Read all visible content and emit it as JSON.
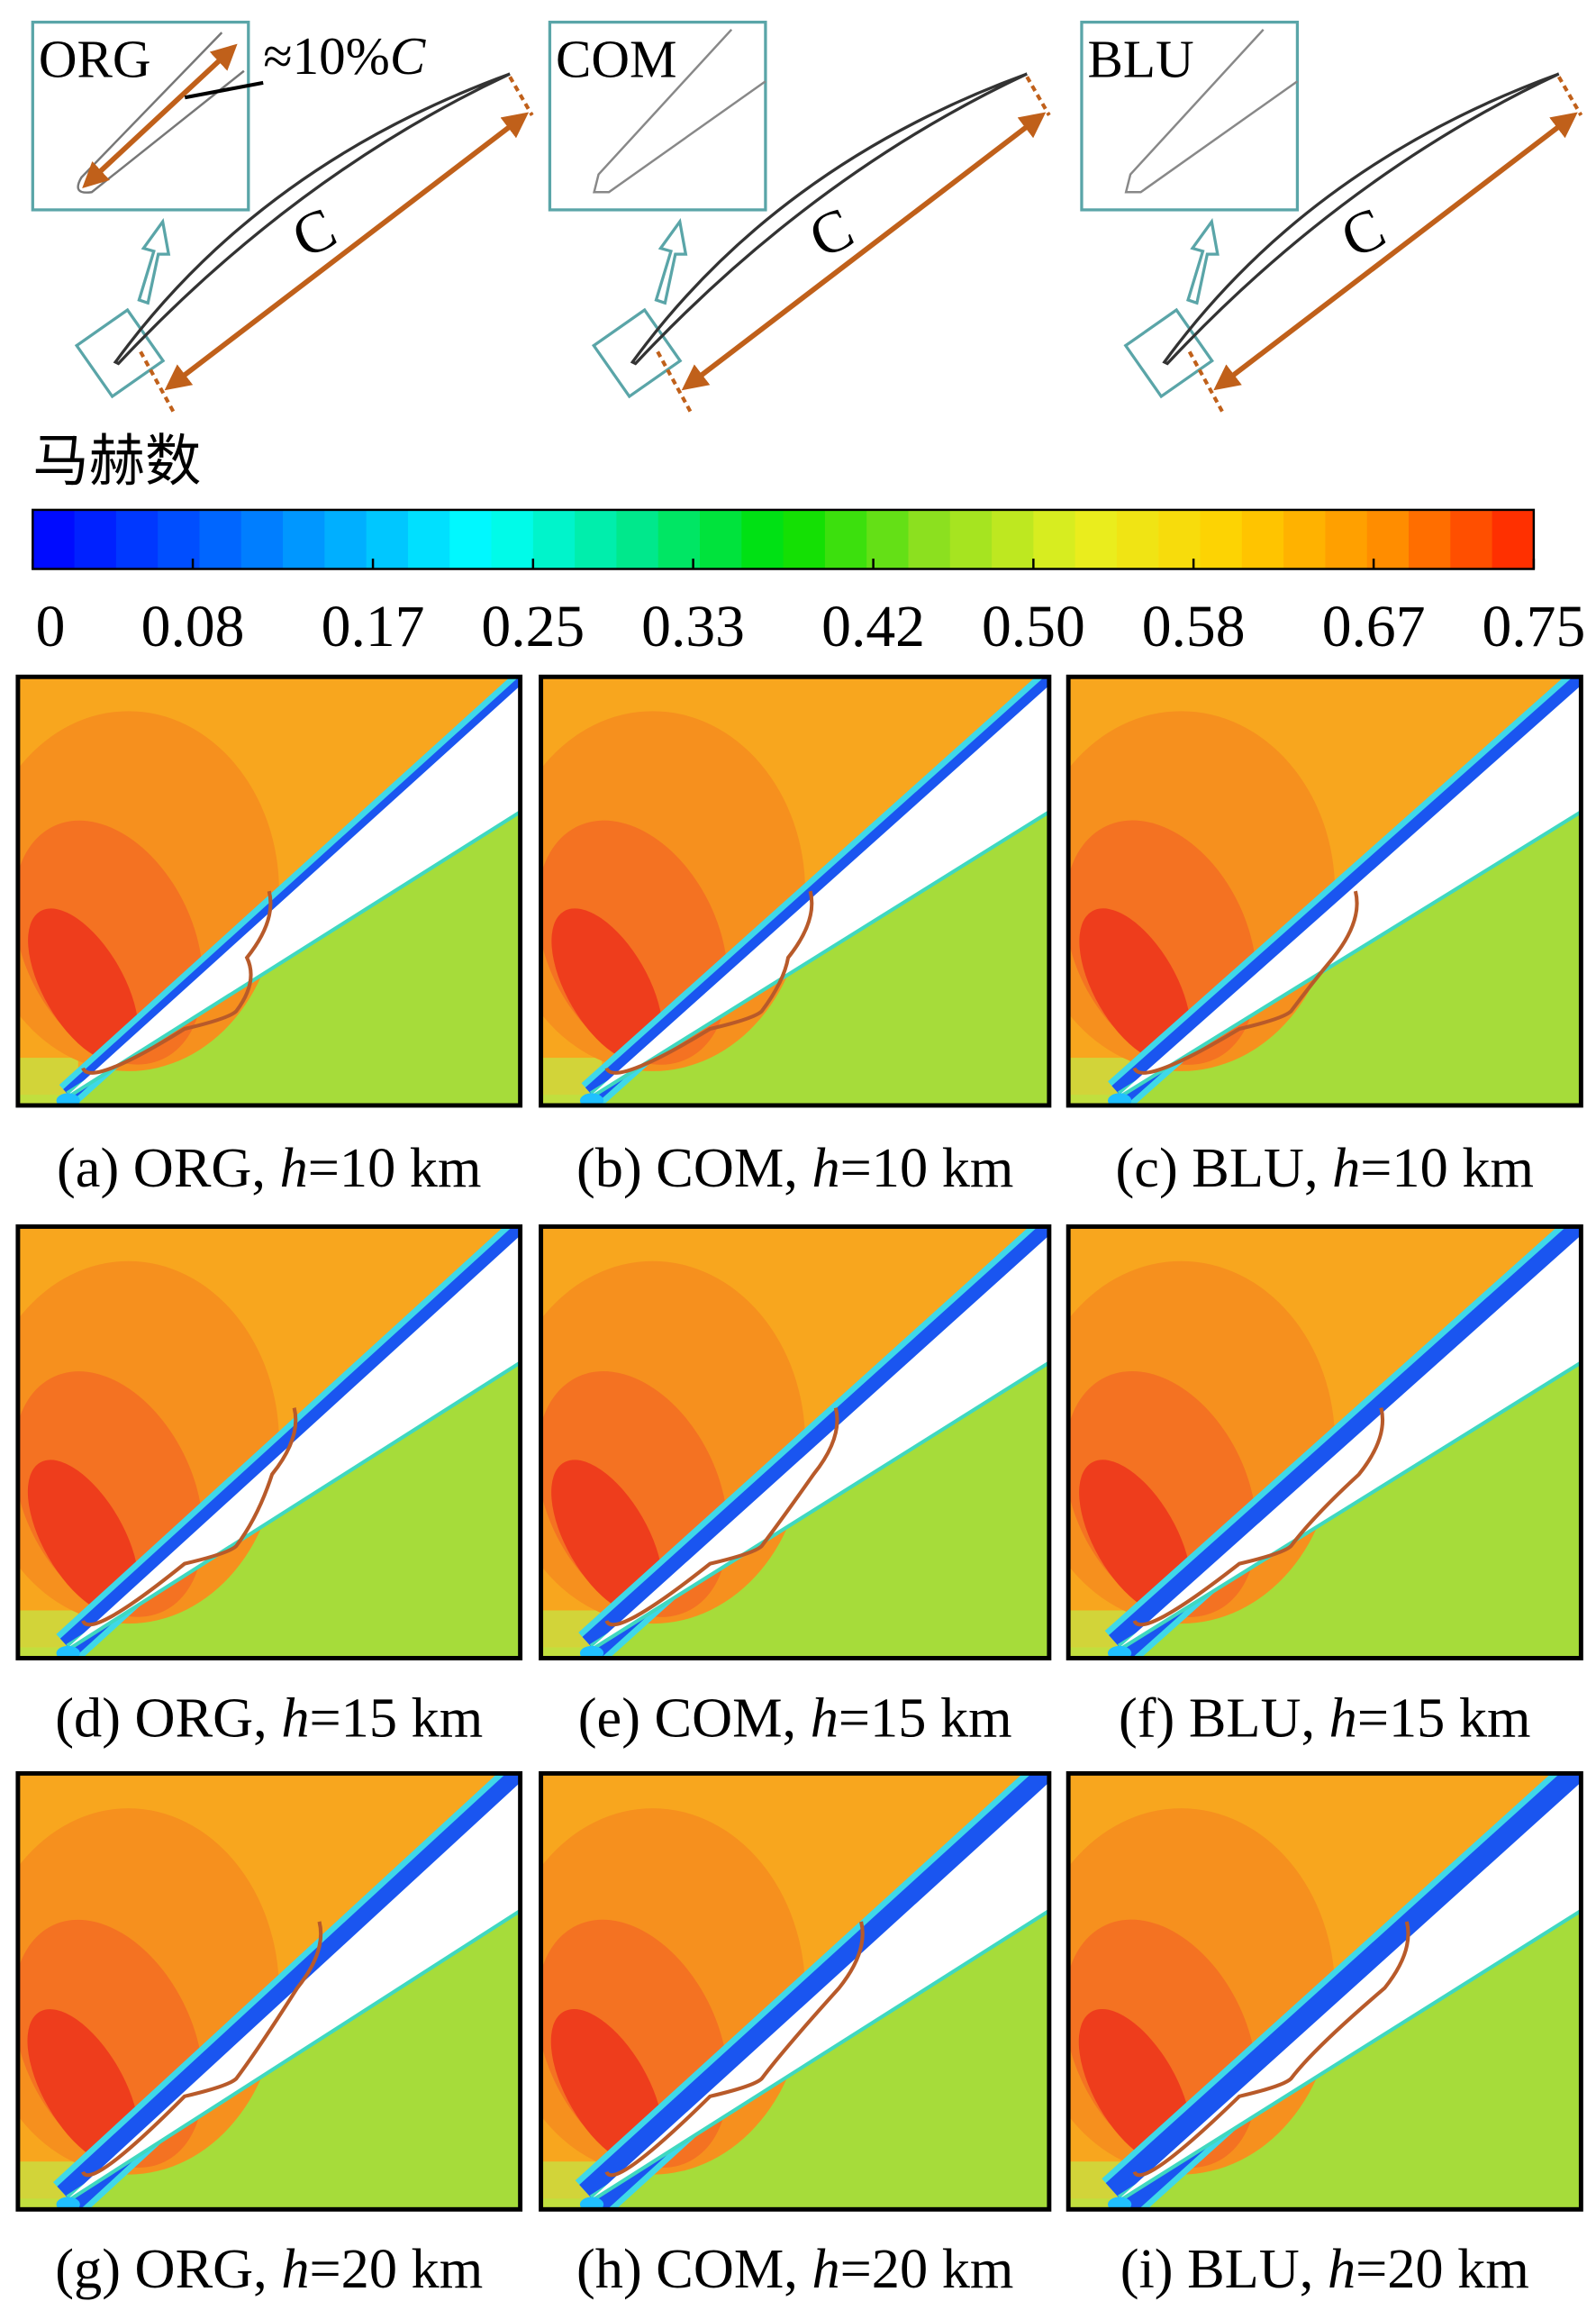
{
  "airfoils": [
    {
      "name": "ORG",
      "inset_note": [
        "≈10%",
        "C"
      ],
      "chord_label": "C"
    },
    {
      "name": "COM",
      "chord_label": "C"
    },
    {
      "name": "BLU",
      "chord_label": "C"
    }
  ],
  "colorbar": {
    "label": "马赫数",
    "range": [
      0,
      0.75
    ],
    "ticks": [
      0,
      0.08,
      0.17,
      0.25,
      0.33,
      0.42,
      {
        "value": 0.5,
        "label": "0.50"
      },
      0.58,
      0.67,
      0.75
    ],
    "colors": [
      "#0000ff",
      "#0050ff",
      "#00a8ff",
      "#00ffff",
      "#00e890",
      "#00e000",
      "#90e020",
      "#e8f020",
      "#ffd000",
      "#ff9000",
      "#ff2000"
    ]
  },
  "panels": [
    {
      "caption": [
        "(a) ORG, ",
        "h",
        "=10 km"
      ]
    },
    {
      "caption": [
        "(b) COM, ",
        "h",
        "=10 km"
      ]
    },
    {
      "caption": [
        "(c) BLU, ",
        "h",
        "=10 km"
      ]
    },
    {
      "caption": [
        "(d) ORG, ",
        "h",
        "=15 km"
      ]
    },
    {
      "caption": [
        "(e) COM, ",
        "h",
        "=15 km"
      ]
    },
    {
      "caption": [
        "(f) BLU, ",
        "h",
        "=15 km"
      ]
    },
    {
      "caption": [
        "(g) ORG, ",
        "h",
        "=20 km"
      ]
    },
    {
      "caption": [
        "(h) COM, ",
        "h",
        "=20 km"
      ]
    },
    {
      "caption": [
        "(i) BLU, ",
        "h",
        "=20 km"
      ]
    }
  ]
}
